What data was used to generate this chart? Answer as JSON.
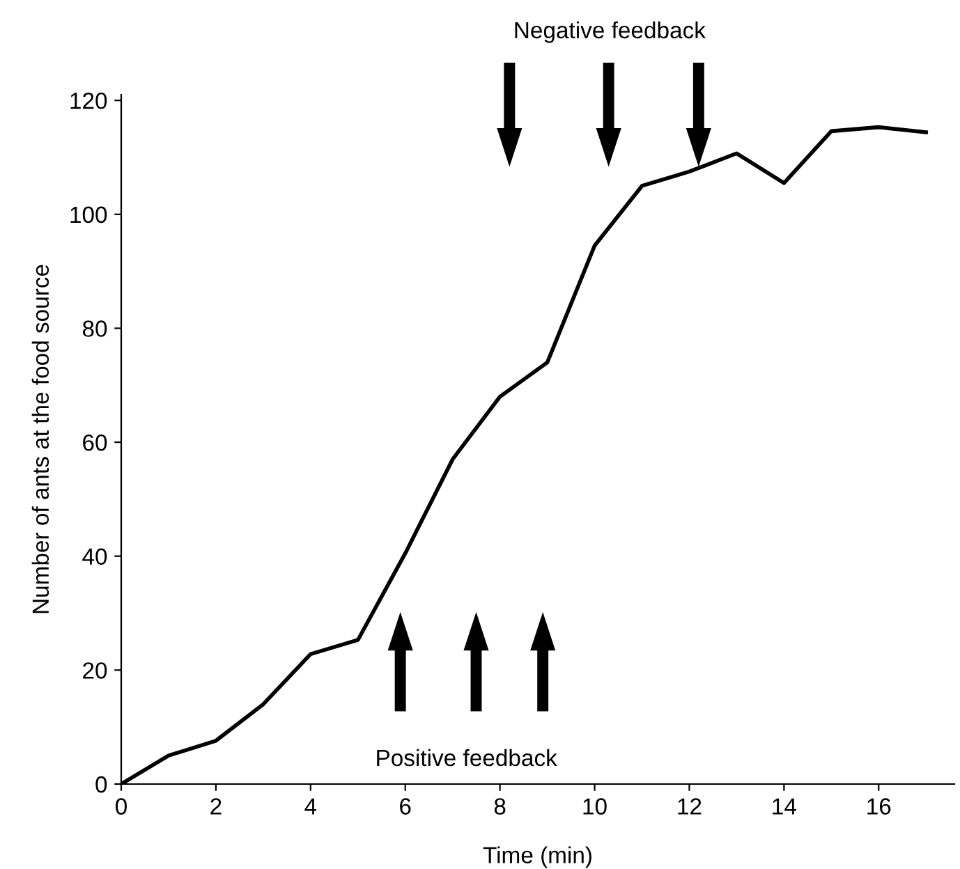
{
  "chart_data": {
    "type": "line",
    "xlabel": "Time (min)",
    "ylabel": "Number of ants at the food source",
    "x": [
      0,
      1,
      2,
      3,
      4,
      5,
      6,
      7,
      8,
      9,
      10,
      11,
      12,
      13,
      14,
      15,
      16,
      17
    ],
    "series": [
      {
        "color": "#000000",
        "values": [
          0,
          5,
          7.6,
          14,
          22.8,
          25.3,
          40.5,
          57,
          68,
          74,
          94.5,
          105,
          107.5,
          110.7,
          105.5,
          114.6,
          115.3,
          114.4
        ]
      }
    ],
    "xlim": [
      0,
      17.6
    ],
    "ylim": [
      0,
      121
    ],
    "xticks": [
      0,
      2,
      4,
      6,
      8,
      10,
      12,
      14,
      16
    ],
    "yticks": [
      0,
      20,
      40,
      60,
      80,
      100,
      120
    ],
    "grid": false,
    "legend": false,
    "marker": "none",
    "line_style": "solid",
    "annotations": [
      "Negative feedback",
      "Positive feedback"
    ]
  }
}
